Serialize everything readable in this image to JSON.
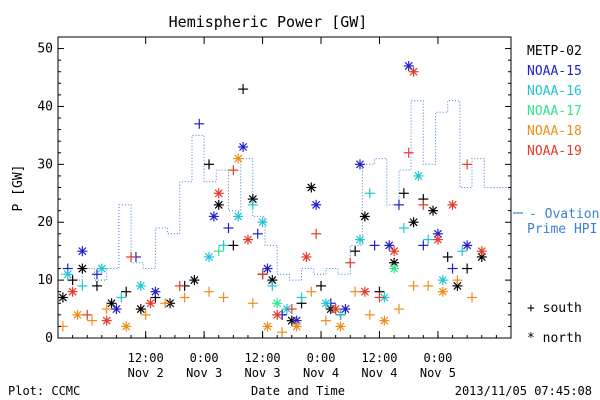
{
  "chart_data": {
    "type": "scatter",
    "title": "Hemispheric Power [GW]",
    "ylabel": "P [GW]",
    "xlabel": "Date and Time",
    "ylim": [
      0,
      52
    ],
    "yticks": [
      0,
      10,
      20,
      30,
      40,
      50
    ],
    "xlim": [
      "2013-11-01T18:00",
      "2013-11-05T15:00"
    ],
    "xticks": [
      {
        "t": "2013-11-02T12:00",
        "top": "12:00",
        "bottom": "Nov 2"
      },
      {
        "t": "2013-11-03T00:00",
        "top": "0:00",
        "bottom": "Nov 3"
      },
      {
        "t": "2013-11-03T12:00",
        "top": "12:00",
        "bottom": "Nov 3"
      },
      {
        "t": "2013-11-04T00:00",
        "top": "0:00",
        "bottom": "Nov 4"
      },
      {
        "t": "2013-11-04T12:00",
        "top": "12:00",
        "bottom": "Nov 4"
      },
      {
        "t": "2013-11-05T00:00",
        "top": "0:00",
        "bottom": "Nov 5"
      }
    ],
    "marker_legend": [
      {
        "symbol": "+",
        "label": "south"
      },
      {
        "symbol": "*",
        "label": "north"
      }
    ],
    "series": [
      {
        "name": "METP-02",
        "color": "#000000",
        "points": [
          [
            "2013-11-01T19:00",
            7,
            "*"
          ],
          [
            "2013-11-01T21:00",
            10,
            "+"
          ],
          [
            "2013-11-01T23:00",
            12,
            "*"
          ],
          [
            "2013-11-02T02:00",
            9,
            "+"
          ],
          [
            "2013-11-02T05:00",
            6,
            "*"
          ],
          [
            "2013-11-02T08:00",
            8,
            "+"
          ],
          [
            "2013-11-02T11:00",
            5,
            "*"
          ],
          [
            "2013-11-02T14:00",
            7,
            "+"
          ],
          [
            "2013-11-02T17:00",
            6,
            "*"
          ],
          [
            "2013-11-02T20:00",
            9,
            "+"
          ],
          [
            "2013-11-02T22:00",
            10,
            "*"
          ],
          [
            "2013-11-03T01:00",
            30,
            "+"
          ],
          [
            "2013-11-03T03:00",
            23,
            "*"
          ],
          [
            "2013-11-03T06:00",
            16,
            "+"
          ],
          [
            "2013-11-03T08:00",
            43,
            "+"
          ],
          [
            "2013-11-03T10:00",
            24,
            "*"
          ],
          [
            "2013-11-03T12:00",
            11,
            "+"
          ],
          [
            "2013-11-03T14:00",
            10,
            "*"
          ],
          [
            "2013-11-03T16:00",
            4,
            "+"
          ],
          [
            "2013-11-03T18:00",
            3,
            "*"
          ],
          [
            "2013-11-03T20:00",
            6,
            "+"
          ],
          [
            "2013-11-03T22:00",
            26,
            "*"
          ],
          [
            "2013-11-04T00:00",
            9,
            "+"
          ],
          [
            "2013-11-04T02:00",
            5,
            "*"
          ],
          [
            "2013-11-04T04:00",
            4,
            "+"
          ],
          [
            "2013-11-04T07:00",
            15,
            "+"
          ],
          [
            "2013-11-04T09:00",
            21,
            "*"
          ],
          [
            "2013-11-04T12:00",
            8,
            "+"
          ],
          [
            "2013-11-04T15:00",
            13,
            "*"
          ],
          [
            "2013-11-04T17:00",
            25,
            "+"
          ],
          [
            "2013-11-04T19:00",
            20,
            "*"
          ],
          [
            "2013-11-04T21:00",
            24,
            "+"
          ],
          [
            "2013-11-04T23:00",
            22,
            "*"
          ],
          [
            "2013-11-05T02:00",
            14,
            "+"
          ],
          [
            "2013-11-05T04:00",
            9,
            "*"
          ],
          [
            "2013-11-05T06:00",
            12,
            "+"
          ],
          [
            "2013-11-05T09:00",
            14,
            "*"
          ]
        ]
      },
      {
        "name": "NOAA-15",
        "color": "#1f1fcc",
        "points": [
          [
            "2013-11-01T20:00",
            12,
            "+"
          ],
          [
            "2013-11-01T23:00",
            15,
            "*"
          ],
          [
            "2013-11-02T02:00",
            11,
            "+"
          ],
          [
            "2013-11-02T06:00",
            5,
            "*"
          ],
          [
            "2013-11-02T10:00",
            14,
            "+"
          ],
          [
            "2013-11-02T14:00",
            8,
            "*"
          ],
          [
            "2013-11-02T23:00",
            37,
            "+"
          ],
          [
            "2013-11-03T02:00",
            21,
            "*"
          ],
          [
            "2013-11-03T05:00",
            19,
            "+"
          ],
          [
            "2013-11-03T08:00",
            33,
            "*"
          ],
          [
            "2013-11-03T11:00",
            18,
            "+"
          ],
          [
            "2013-11-03T13:00",
            12,
            "*"
          ],
          [
            "2013-11-03T16:00",
            4,
            "+"
          ],
          [
            "2013-11-03T19:00",
            3,
            "*"
          ],
          [
            "2013-11-03T23:00",
            23,
            "*"
          ],
          [
            "2013-11-04T02:00",
            6,
            "+"
          ],
          [
            "2013-11-04T05:00",
            5,
            "*"
          ],
          [
            "2013-11-04T08:00",
            30,
            "*"
          ],
          [
            "2013-11-04T11:00",
            16,
            "+"
          ],
          [
            "2013-11-04T14:00",
            16,
            "*"
          ],
          [
            "2013-11-04T16:00",
            23,
            "+"
          ],
          [
            "2013-11-04T18:00",
            47,
            "*"
          ],
          [
            "2013-11-04T21:00",
            16,
            "+"
          ],
          [
            "2013-11-05T00:00",
            18,
            "*"
          ],
          [
            "2013-11-05T03:00",
            12,
            "+"
          ],
          [
            "2013-11-05T06:00",
            16,
            "*"
          ]
        ]
      },
      {
        "name": "NOAA-16",
        "color": "#22c5d6",
        "points": [
          [
            "2013-11-01T20:00",
            11,
            "*"
          ],
          [
            "2013-11-01T23:00",
            9,
            "+"
          ],
          [
            "2013-11-02T03:00",
            12,
            "*"
          ],
          [
            "2013-11-02T07:00",
            7,
            "+"
          ],
          [
            "2013-11-02T11:00",
            9,
            "*"
          ],
          [
            "2013-11-03T01:00",
            14,
            "*"
          ],
          [
            "2013-11-03T04:00",
            16,
            "+"
          ],
          [
            "2013-11-03T07:00",
            21,
            "*"
          ],
          [
            "2013-11-03T10:00",
            23,
            "+"
          ],
          [
            "2013-11-03T12:00",
            20,
            "*"
          ],
          [
            "2013-11-03T14:00",
            9,
            "+"
          ],
          [
            "2013-11-03T17:00",
            5,
            "*"
          ],
          [
            "2013-11-03T20:00",
            7,
            "+"
          ],
          [
            "2013-11-04T01:00",
            6,
            "*"
          ],
          [
            "2013-11-04T04:00",
            4,
            "+"
          ],
          [
            "2013-11-04T08:00",
            17,
            "*"
          ],
          [
            "2013-11-04T10:00",
            25,
            "+"
          ],
          [
            "2013-11-04T13:00",
            7,
            "*"
          ],
          [
            "2013-11-04T17:00",
            19,
            "+"
          ],
          [
            "2013-11-04T20:00",
            28,
            "*"
          ],
          [
            "2013-11-04T22:00",
            17,
            "+"
          ],
          [
            "2013-11-05T01:00",
            10,
            "*"
          ],
          [
            "2013-11-05T05:00",
            15,
            "+"
          ]
        ]
      },
      {
        "name": "NOAA-17",
        "color": "#2ee88a",
        "points": [
          [
            "2013-11-03T03:00",
            15,
            "+"
          ],
          [
            "2013-11-03T15:00",
            6,
            "*"
          ],
          [
            "2013-11-04T03:00",
            5,
            "+"
          ],
          [
            "2013-11-04T15:00",
            12,
            "*"
          ]
        ]
      },
      {
        "name": "NOAA-18",
        "color": "#f08c1a",
        "points": [
          [
            "2013-11-01T19:00",
            2,
            "+"
          ],
          [
            "2013-11-01T22:00",
            4,
            "*"
          ],
          [
            "2013-11-02T01:00",
            3,
            "+"
          ],
          [
            "2013-11-02T04:00",
            5,
            "+"
          ],
          [
            "2013-11-02T08:00",
            2,
            "*"
          ],
          [
            "2013-11-02T12:00",
            4,
            "+"
          ],
          [
            "2013-11-02T16:00",
            6,
            "+"
          ],
          [
            "2013-11-02T20:00",
            7,
            "+"
          ],
          [
            "2013-11-03T01:00",
            8,
            "+"
          ],
          [
            "2013-11-03T04:00",
            7,
            "+"
          ],
          [
            "2013-11-03T07:00",
            31,
            "*"
          ],
          [
            "2013-11-03T10:00",
            6,
            "+"
          ],
          [
            "2013-11-03T13:00",
            2,
            "*"
          ],
          [
            "2013-11-03T16:00",
            1,
            "+"
          ],
          [
            "2013-11-03T19:00",
            2,
            "*"
          ],
          [
            "2013-11-03T22:00",
            8,
            "+"
          ],
          [
            "2013-11-04T01:00",
            3,
            "+"
          ],
          [
            "2013-11-04T04:00",
            2,
            "*"
          ],
          [
            "2013-11-04T07:00",
            8,
            "+"
          ],
          [
            "2013-11-04T10:00",
            4,
            "+"
          ],
          [
            "2013-11-04T13:00",
            3,
            "*"
          ],
          [
            "2013-11-04T16:00",
            5,
            "+"
          ],
          [
            "2013-11-04T19:00",
            9,
            "+"
          ],
          [
            "2013-11-04T22:00",
            9,
            "+"
          ],
          [
            "2013-11-05T01:00",
            8,
            "*"
          ],
          [
            "2013-11-05T04:00",
            10,
            "+"
          ],
          [
            "2013-11-05T07:00",
            7,
            "+"
          ]
        ]
      },
      {
        "name": "NOAA-19",
        "color": "#e33b2a",
        "points": [
          [
            "2013-11-01T21:00",
            8,
            "*"
          ],
          [
            "2013-11-02T00:00",
            4,
            "+"
          ],
          [
            "2013-11-02T04:00",
            3,
            "*"
          ],
          [
            "2013-11-02T09:00",
            14,
            "+"
          ],
          [
            "2013-11-02T13:00",
            6,
            "*"
          ],
          [
            "2013-11-02T19:00",
            9,
            "+"
          ],
          [
            "2013-11-03T03:00",
            25,
            "*"
          ],
          [
            "2013-11-03T06:00",
            29,
            "+"
          ],
          [
            "2013-11-03T09:00",
            17,
            "*"
          ],
          [
            "2013-11-03T12:00",
            11,
            "+"
          ],
          [
            "2013-11-03T15:00",
            4,
            "*"
          ],
          [
            "2013-11-03T18:00",
            5,
            "+"
          ],
          [
            "2013-11-03T21:00",
            14,
            "*"
          ],
          [
            "2013-11-03T23:00",
            18,
            "+"
          ],
          [
            "2013-11-04T03:00",
            5,
            "*"
          ],
          [
            "2013-11-04T06:00",
            13,
            "+"
          ],
          [
            "2013-11-04T09:00",
            8,
            "*"
          ],
          [
            "2013-11-04T12:00",
            7,
            "+"
          ],
          [
            "2013-11-04T15:00",
            15,
            "*"
          ],
          [
            "2013-11-04T18:00",
            32,
            "+"
          ],
          [
            "2013-11-04T19:00",
            46,
            "*"
          ],
          [
            "2013-11-04T21:00",
            23,
            "+"
          ],
          [
            "2013-11-05T00:00",
            17,
            "*"
          ],
          [
            "2013-11-05T03:00",
            23,
            "*"
          ],
          [
            "2013-11-05T06:00",
            30,
            "+"
          ],
          [
            "2013-11-05T09:00",
            15,
            "*"
          ]
        ]
      }
    ],
    "model": {
      "name": "Ovation Prime HPI",
      "legend_lines": [
        "Ovation",
        "Prime HPI"
      ],
      "color": "#3a7fd8",
      "style": "dotted-step",
      "steps": [
        [
          "2013-11-01T18:00",
          11
        ],
        [
          "2013-11-01T20:30",
          10
        ],
        [
          "2013-11-01T23:00",
          12
        ],
        [
          "2013-11-02T01:30",
          10
        ],
        [
          "2013-11-02T04:00",
          12
        ],
        [
          "2013-11-02T06:30",
          23
        ],
        [
          "2013-11-02T09:00",
          13
        ],
        [
          "2013-11-02T11:30",
          12
        ],
        [
          "2013-11-02T14:00",
          19
        ],
        [
          "2013-11-02T16:30",
          18
        ],
        [
          "2013-11-02T19:00",
          27
        ],
        [
          "2013-11-02T21:30",
          35
        ],
        [
          "2013-11-03T00:00",
          27
        ],
        [
          "2013-11-03T02:30",
          29
        ],
        [
          "2013-11-03T05:00",
          22
        ],
        [
          "2013-11-03T07:30",
          31
        ],
        [
          "2013-11-03T10:00",
          21
        ],
        [
          "2013-11-03T12:30",
          16
        ],
        [
          "2013-11-03T15:00",
          11
        ],
        [
          "2013-11-03T17:30",
          10
        ],
        [
          "2013-11-03T20:00",
          12
        ],
        [
          "2013-11-03T22:30",
          11
        ],
        [
          "2013-11-04T01:00",
          12
        ],
        [
          "2013-11-04T03:30",
          11
        ],
        [
          "2013-11-04T06:00",
          16
        ],
        [
          "2013-11-04T08:30",
          30
        ],
        [
          "2013-11-04T11:00",
          31
        ],
        [
          "2013-11-04T13:30",
          23
        ],
        [
          "2013-11-04T16:00",
          29
        ],
        [
          "2013-11-04T18:30",
          41
        ],
        [
          "2013-11-04T21:00",
          30
        ],
        [
          "2013-11-04T23:30",
          39
        ],
        [
          "2013-11-05T02:00",
          41
        ],
        [
          "2013-11-05T04:30",
          26
        ],
        [
          "2013-11-05T07:00",
          31
        ],
        [
          "2013-11-05T09:30",
          26
        ],
        [
          "2013-11-05T15:00",
          26
        ]
      ]
    }
  },
  "footer": {
    "left": "Plot: CCMC",
    "center": "Date and Time",
    "right": "2013/11/05 07:45:08"
  }
}
